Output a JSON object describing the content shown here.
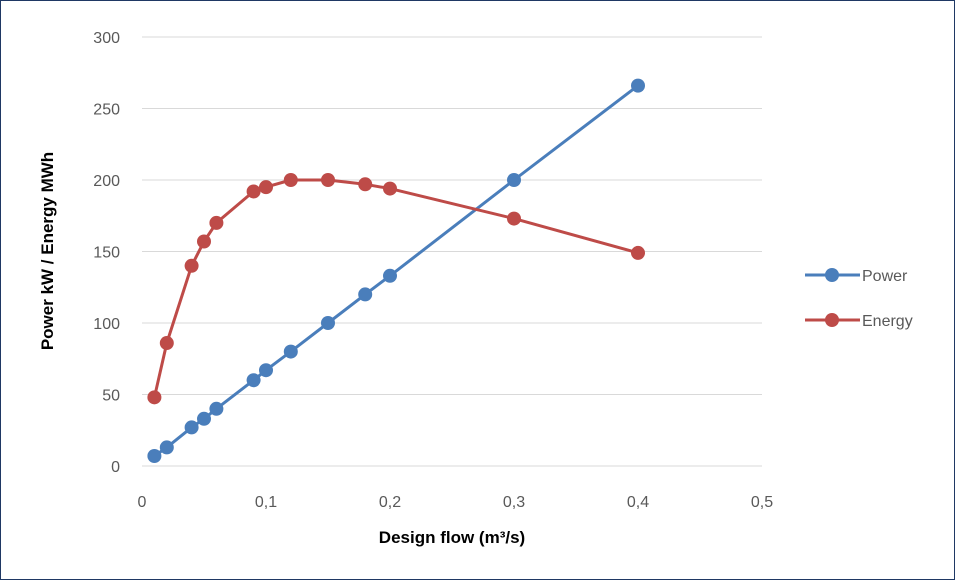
{
  "chart_data": {
    "type": "scatter",
    "mode": "lines+markers",
    "xlabel": "Design flow (m³/s)",
    "ylabel": "Power kW / Energy MWh",
    "xlim": [
      0,
      0.5
    ],
    "ylim": [
      0,
      300
    ],
    "x_ticks": [
      "0",
      "0,1",
      "0,2",
      "0,3",
      "0,4",
      "0,5"
    ],
    "y_ticks": [
      "0",
      "50",
      "100",
      "150",
      "200",
      "250",
      "300"
    ],
    "grid": "horizontal",
    "legend_position": "right",
    "series": [
      {
        "name": "Power",
        "color": "#4a7ebb",
        "x": [
          0.01,
          0.02,
          0.04,
          0.05,
          0.06,
          0.09,
          0.1,
          0.12,
          0.15,
          0.18,
          0.2,
          0.3,
          0.4
        ],
        "y": [
          7,
          13,
          27,
          33,
          40,
          60,
          67,
          80,
          100,
          120,
          133,
          200,
          266
        ]
      },
      {
        "name": "Energy",
        "color": "#be4b48",
        "x": [
          0.01,
          0.02,
          0.04,
          0.05,
          0.06,
          0.09,
          0.1,
          0.12,
          0.15,
          0.18,
          0.2,
          0.3,
          0.4
        ],
        "y": [
          48,
          86,
          140,
          157,
          170,
          192,
          195,
          200,
          200,
          197,
          194,
          173,
          149
        ]
      }
    ]
  }
}
